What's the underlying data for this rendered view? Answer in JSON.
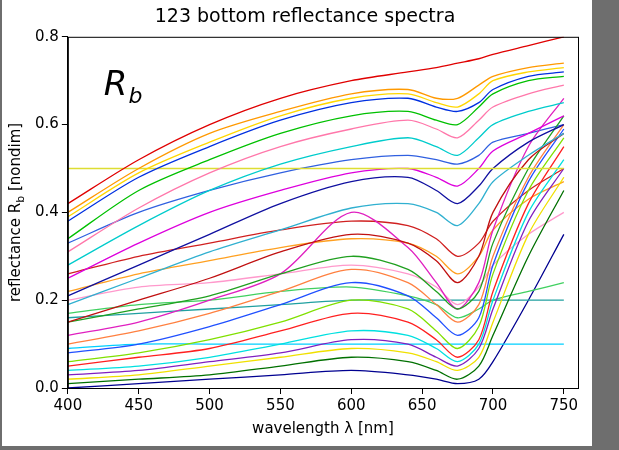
{
  "chart_data": {
    "type": "line",
    "title": "123 bottom reflectance spectra",
    "xlabel": "wavelength λ [nm]",
    "ylabel": {
      "text": "reflectance R",
      "subscript": "b",
      "after": " [nondim]"
    },
    "annotations": [
      {
        "text": "R",
        "subscript": "b"
      }
    ],
    "x": [
      400,
      450,
      500,
      550,
      600,
      640,
      660,
      675,
      690,
      700,
      725,
      750
    ],
    "xlim": [
      400,
      760
    ],
    "xticks": [
      400,
      450,
      500,
      550,
      600,
      650,
      700,
      750
    ],
    "ylim": [
      0,
      0.8
    ],
    "yticks": [
      {
        "value": 0,
        "label": "0.0"
      },
      {
        "value": 0.2,
        "label": "0.2"
      },
      {
        "value": 0.4,
        "label": "0.4"
      },
      {
        "value": 0.6,
        "label": "0.6"
      },
      {
        "value": 0.8,
        "label": "0.8"
      }
    ],
    "grid": false,
    "series": [
      {
        "color": "#e00000",
        "values": [
          0.42,
          0.52,
          0.6,
          0.66,
          0.7,
          0.72,
          0.73,
          0.74,
          0.75,
          0.76,
          0.78,
          0.8
        ]
      },
      {
        "color": "#ff9900",
        "values": [
          0.4,
          0.5,
          0.58,
          0.63,
          0.67,
          0.68,
          0.66,
          0.66,
          0.69,
          0.71,
          0.73,
          0.74
        ]
      },
      {
        "color": "#ffd700",
        "values": [
          0.39,
          0.49,
          0.56,
          0.62,
          0.66,
          0.67,
          0.65,
          0.64,
          0.67,
          0.7,
          0.72,
          0.73
        ]
      },
      {
        "color": "#0030e0",
        "values": [
          0.38,
          0.48,
          0.55,
          0.61,
          0.65,
          0.66,
          0.64,
          0.63,
          0.65,
          0.68,
          0.71,
          0.72
        ]
      },
      {
        "color": "#00c000",
        "values": [
          0.34,
          0.45,
          0.52,
          0.58,
          0.62,
          0.63,
          0.61,
          0.6,
          0.64,
          0.67,
          0.7,
          0.71
        ]
      },
      {
        "color": "#ff77aa",
        "values": [
          0.31,
          0.41,
          0.49,
          0.55,
          0.59,
          0.61,
          0.59,
          0.57,
          0.61,
          0.64,
          0.67,
          0.69
        ]
      },
      {
        "color": "#00cccc",
        "values": [
          0.28,
          0.37,
          0.45,
          0.51,
          0.55,
          0.57,
          0.55,
          0.53,
          0.57,
          0.6,
          0.63,
          0.65
        ]
      },
      {
        "color": "#dddd33",
        "values": [
          0.5,
          0.5,
          0.5,
          0.5,
          0.5,
          0.5,
          0.5,
          0.5,
          0.5,
          0.5,
          0.5,
          0.5
        ]
      },
      {
        "color": "#dd00dd",
        "values": [
          0.25,
          0.33,
          0.4,
          0.45,
          0.49,
          0.5,
          0.48,
          0.46,
          0.5,
          0.54,
          0.58,
          0.62
        ]
      },
      {
        "color": "#1010a0",
        "values": [
          0.21,
          0.28,
          0.35,
          0.42,
          0.47,
          0.48,
          0.45,
          0.42,
          0.46,
          0.5,
          0.56,
          0.6
        ]
      },
      {
        "color": "#30b0d0",
        "values": [
          0.19,
          0.25,
          0.31,
          0.36,
          0.41,
          0.42,
          0.4,
          0.37,
          0.42,
          0.47,
          0.53,
          0.58
        ]
      },
      {
        "color": "#c01010",
        "values": [
          0.15,
          0.2,
          0.25,
          0.31,
          0.35,
          0.33,
          0.29,
          0.24,
          0.3,
          0.4,
          0.52,
          0.58
        ]
      },
      {
        "color": "#20a020",
        "values": [
          0.15,
          0.18,
          0.21,
          0.26,
          0.3,
          0.27,
          0.22,
          0.18,
          0.22,
          0.33,
          0.5,
          0.62
        ]
      },
      {
        "color": "#e020c0",
        "values": [
          0.12,
          0.15,
          0.2,
          0.26,
          0.4,
          0.32,
          0.24,
          0.18,
          0.24,
          0.36,
          0.55,
          0.66
        ]
      },
      {
        "color": "#ff8040",
        "values": [
          0.1,
          0.13,
          0.17,
          0.22,
          0.27,
          0.24,
          0.19,
          0.15,
          0.19,
          0.3,
          0.48,
          0.6
        ]
      },
      {
        "color": "#2050ff",
        "values": [
          0.08,
          0.1,
          0.14,
          0.19,
          0.24,
          0.21,
          0.16,
          0.12,
          0.16,
          0.28,
          0.47,
          0.59
        ]
      },
      {
        "color": "#80e000",
        "values": [
          0.06,
          0.08,
          0.11,
          0.15,
          0.2,
          0.18,
          0.13,
          0.09,
          0.14,
          0.26,
          0.45,
          0.57
        ]
      },
      {
        "color": "#ff2020",
        "values": [
          0.05,
          0.07,
          0.09,
          0.13,
          0.17,
          0.15,
          0.11,
          0.07,
          0.11,
          0.22,
          0.42,
          0.55
        ]
      },
      {
        "color": "#00e0e0",
        "values": [
          0.04,
          0.05,
          0.07,
          0.1,
          0.13,
          0.12,
          0.09,
          0.06,
          0.1,
          0.2,
          0.4,
          0.52
        ]
      },
      {
        "color": "#8020c0",
        "values": [
          0.03,
          0.04,
          0.06,
          0.08,
          0.11,
          0.1,
          0.07,
          0.05,
          0.09,
          0.18,
          0.38,
          0.5
        ]
      },
      {
        "color": "#f0e000",
        "values": [
          0.02,
          0.03,
          0.05,
          0.07,
          0.09,
          0.08,
          0.06,
          0.04,
          0.07,
          0.15,
          0.35,
          0.48
        ]
      },
      {
        "color": "#007000",
        "values": [
          0.01,
          0.02,
          0.03,
          0.05,
          0.07,
          0.06,
          0.04,
          0.02,
          0.05,
          0.12,
          0.3,
          0.45
        ]
      },
      {
        "color": "#ff99cc",
        "values": [
          0.2,
          0.23,
          0.24,
          0.26,
          0.28,
          0.26,
          0.23,
          0.19,
          0.23,
          0.28,
          0.35,
          0.4
        ]
      },
      {
        "color": "#40d060",
        "values": [
          0.17,
          0.19,
          0.2,
          0.22,
          0.23,
          0.21,
          0.19,
          0.16,
          0.18,
          0.2,
          0.22,
          0.24
        ]
      },
      {
        "color": "#20a0a0",
        "values": [
          0.16,
          0.17,
          0.18,
          0.19,
          0.2,
          0.2,
          0.2,
          0.2,
          0.2,
          0.2,
          0.2,
          0.2
        ]
      },
      {
        "color": "#00d0ff",
        "values": [
          0.09,
          0.1,
          0.1,
          0.1,
          0.1,
          0.1,
          0.1,
          0.1,
          0.1,
          0.1,
          0.1,
          0.1
        ]
      },
      {
        "color": "#000090",
        "values": [
          0.0,
          0.01,
          0.02,
          0.03,
          0.04,
          0.03,
          0.02,
          0.01,
          0.02,
          0.06,
          0.2,
          0.35
        ]
      },
      {
        "color": "#d02020",
        "values": [
          0.26,
          0.3,
          0.33,
          0.36,
          0.38,
          0.37,
          0.34,
          0.3,
          0.33,
          0.38,
          0.45,
          0.5
        ]
      },
      {
        "color": "#ffa020",
        "values": [
          0.22,
          0.26,
          0.29,
          0.32,
          0.34,
          0.33,
          0.3,
          0.26,
          0.3,
          0.36,
          0.43,
          0.47
        ]
      },
      {
        "color": "#3060e0",
        "values": [
          0.33,
          0.4,
          0.45,
          0.49,
          0.52,
          0.53,
          0.52,
          0.51,
          0.53,
          0.56,
          0.58,
          0.6
        ]
      }
    ]
  }
}
